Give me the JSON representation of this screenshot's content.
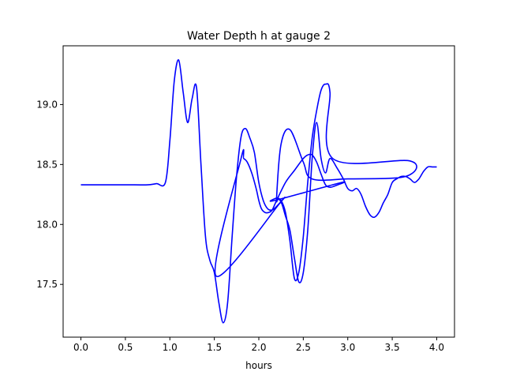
{
  "chart_data": {
    "type": "line",
    "title": "Water Depth h at gauge 2",
    "xlabel": "hours",
    "ylabel": "",
    "xlim": [
      -0.2,
      4.2
    ],
    "ylim": [
      17.06,
      19.49
    ],
    "xticks": [
      0.0,
      0.5,
      1.0,
      1.5,
      2.0,
      2.5,
      3.0,
      3.5,
      4.0
    ],
    "xtick_labels": [
      "0.0",
      "0.5",
      "1.0",
      "1.5",
      "2.0",
      "2.5",
      "3.0",
      "3.5",
      "4.0"
    ],
    "yticks": [
      17.5,
      18.0,
      18.5,
      19.0
    ],
    "ytick_labels": [
      "17.5",
      "18.0",
      "18.5",
      "19.0"
    ],
    "grid": false,
    "legend": null,
    "series": [
      {
        "color": "#0000ff",
        "x": [
          0.0,
          0.3,
          0.6,
          0.75,
          0.85,
          0.95,
          1.0,
          1.05,
          1.1,
          1.15,
          1.2,
          1.25,
          1.3,
          1.35,
          1.4,
          1.45,
          1.5,
          1.55,
          1.6,
          1.65,
          1.7,
          1.75,
          1.8,
          1.85,
          1.9,
          1.95,
          2.0,
          2.05,
          2.1,
          2.15,
          2.2,
          2.25,
          1.52,
          1.8,
          1.83,
          1.87,
          1.92,
          1.97,
          2.0,
          2.03,
          2.07,
          2.11,
          2.15,
          2.2,
          2.3,
          2.4,
          2.5,
          2.55,
          2.6,
          2.65,
          2.7,
          2.75,
          2.8,
          2.85,
          2.93,
          2.18,
          2.2,
          2.25,
          2.3,
          2.35,
          2.4,
          2.45,
          2.5,
          2.55,
          2.6,
          2.65,
          2.7,
          2.75,
          2.8,
          2.83,
          3.7,
          3.65,
          3.0,
          2.6,
          2.5,
          2.35,
          2.25,
          2.2,
          2.22,
          2.26,
          2.3,
          2.35,
          2.4,
          2.45,
          2.5,
          2.55,
          2.6,
          2.65,
          2.7,
          2.75,
          2.8,
          2.88,
          2.95,
          3.0,
          3.05,
          3.1,
          3.15,
          3.2,
          3.25,
          3.3,
          3.35,
          3.4,
          3.45,
          3.5,
          3.55,
          3.6,
          3.65,
          3.7,
          3.75,
          3.8,
          3.85,
          3.9,
          3.95,
          4.0
        ],
        "y": [
          18.33,
          18.33,
          18.33,
          18.33,
          18.34,
          18.35,
          18.7,
          19.2,
          19.37,
          19.1,
          18.85,
          19.05,
          19.14,
          18.5,
          17.9,
          17.7,
          17.6,
          17.35,
          17.18,
          17.35,
          17.9,
          18.4,
          18.73,
          18.8,
          18.72,
          18.6,
          18.35,
          18.2,
          18.13,
          18.12,
          18.15,
          18.19,
          17.57,
          18.55,
          18.55,
          18.52,
          18.43,
          18.3,
          18.2,
          18.13,
          18.1,
          18.1,
          18.12,
          18.2,
          18.35,
          18.45,
          18.55,
          18.58,
          18.58,
          18.52,
          18.42,
          18.33,
          18.31,
          18.32,
          18.35,
          18.2,
          18.22,
          18.2,
          18.1,
          17.86,
          17.55,
          17.6,
          17.9,
          18.35,
          18.72,
          18.95,
          19.12,
          19.17,
          19.1,
          18.55,
          18.53,
          18.4,
          18.38,
          18.38,
          18.52,
          18.79,
          18.67,
          18.22,
          18.22,
          18.17,
          18.07,
          17.95,
          17.72,
          17.52,
          17.6,
          17.95,
          18.55,
          18.85,
          18.55,
          18.43,
          18.55,
          18.47,
          18.38,
          18.3,
          18.28,
          18.3,
          18.25,
          18.15,
          18.08,
          18.06,
          18.1,
          18.18,
          18.25,
          18.35,
          18.38,
          18.4,
          18.4,
          18.38,
          18.35,
          18.38,
          18.44,
          18.48,
          18.48,
          18.48
        ]
      }
    ]
  }
}
